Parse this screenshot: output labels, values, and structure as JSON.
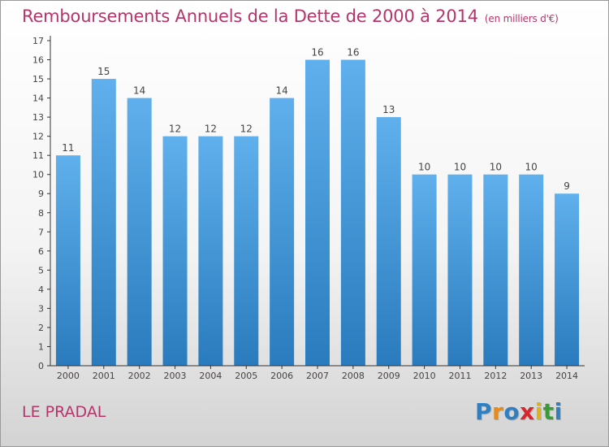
{
  "header": {
    "title": "Remboursements Annuels de la Dette de 2000 à 2014",
    "unit": "(en milliers d'€)"
  },
  "footer": {
    "location": "LE PRADAL"
  },
  "logo": {
    "letters": [
      {
        "ch": "P",
        "color": "#2f7fc1"
      },
      {
        "ch": "r",
        "color": "#e58a1f"
      },
      {
        "ch": "o",
        "color": "#2f7fc1"
      },
      {
        "ch": "x",
        "color": "#d8262e"
      },
      {
        "ch": "i",
        "color": "#e0b21a"
      },
      {
        "ch": "t",
        "color": "#3a9a3a"
      },
      {
        "ch": "i",
        "color": "#2f7fc1"
      }
    ]
  },
  "chart_data": {
    "type": "bar",
    "title": "Remboursements Annuels de la Dette de 2000 à 2014",
    "xlabel": "",
    "ylabel": "",
    "categories": [
      "2000",
      "2001",
      "2002",
      "2003",
      "2004",
      "2005",
      "2006",
      "2007",
      "2008",
      "2009",
      "2010",
      "2011",
      "2012",
      "2013",
      "2014"
    ],
    "values": [
      11,
      15,
      14,
      12,
      12,
      12,
      14,
      16,
      16,
      13,
      10,
      10,
      10,
      10,
      9
    ],
    "data_labels": [
      "11",
      "15",
      "14",
      "12",
      "12",
      "12",
      "14",
      "16",
      "16",
      "13",
      "10",
      "10",
      "10",
      "10",
      "9"
    ],
    "y_ticks": [
      "0",
      "1",
      "2",
      "3",
      "4",
      "5",
      "6",
      "7",
      "8",
      "9",
      "10",
      "11",
      "12",
      "13",
      "14",
      "15",
      "16",
      "17"
    ],
    "ylim": [
      0,
      17
    ],
    "grid": false,
    "colors": {
      "bar_light": "#5fb0ec",
      "bar_dark": "#2a7bbd",
      "label": "#444444",
      "axis": "#333333"
    }
  }
}
